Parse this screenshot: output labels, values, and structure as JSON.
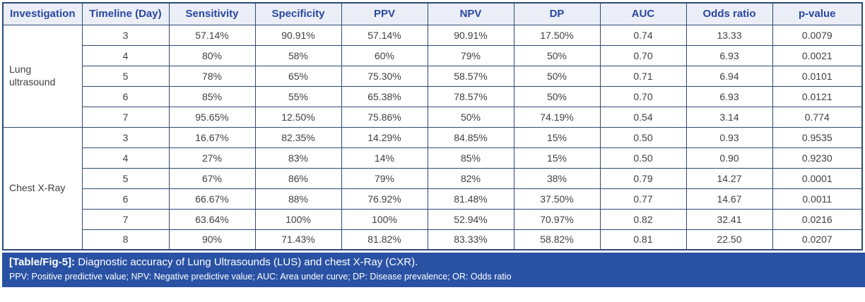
{
  "table": {
    "columns": [
      "Investigation",
      "Timeline (Day)",
      "Sensitivity",
      "Specificity",
      "PPV",
      "NPV",
      "DP",
      "AUC",
      "Odds ratio",
      "p-value"
    ],
    "groups": [
      {
        "investigation": "Lung ultrasound",
        "rows": [
          [
            "3",
            "57.14%",
            "90.91%",
            "57.14%",
            "90.91%",
            "17.50%",
            "0.74",
            "13.33",
            "0.0079"
          ],
          [
            "4",
            "80%",
            "58%",
            "60%",
            "79%",
            "50%",
            "0.70",
            "6.93",
            "0.0021"
          ],
          [
            "5",
            "78%",
            "65%",
            "75.30%",
            "58.57%",
            "50%",
            "0.71",
            "6.94",
            "0.0101"
          ],
          [
            "6",
            "85%",
            "55%",
            "65.38%",
            "78.57%",
            "50%",
            "0.70",
            "6.93",
            "0.0121"
          ],
          [
            "7",
            "95.65%",
            "12.50%",
            "75.86%",
            "50%",
            "74.19%",
            "0.54",
            "3.14",
            "0.774"
          ]
        ]
      },
      {
        "investigation": "Chest X-Ray",
        "rows": [
          [
            "3",
            "16.67%",
            "82.35%",
            "14.29%",
            "84.85%",
            "15%",
            "0.50",
            "0.93",
            "0.9535"
          ],
          [
            "4",
            "27%",
            "83%",
            "14%",
            "85%",
            "15%",
            "0.50",
            "0.90",
            "0.9230"
          ],
          [
            "5",
            "67%",
            "86%",
            "79%",
            "82%",
            "38%",
            "0.79",
            "14.27",
            "0.0001"
          ],
          [
            "6",
            "66.67%",
            "88%",
            "76.92%",
            "81.48%",
            "37.50%",
            "0.77",
            "14.67",
            "0.0011"
          ],
          [
            "7",
            "63.64%",
            "100%",
            "100%",
            "52.94%",
            "70.97%",
            "0.82",
            "32.41",
            "0.0216"
          ],
          [
            "8",
            "90%",
            "71.43%",
            "81.82%",
            "83.33%",
            "58.82%",
            "0.81",
            "22.50",
            "0.0207"
          ]
        ]
      }
    ]
  },
  "caption": {
    "label": "[Table/Fig-5]:",
    "title": " Diagnostic accuracy of Lung Ultrasounds (LUS) and chest X-Ray (CXR).",
    "abbreviations": "PPV: Positive predictive value; NPV: Negative predictive value; AUC: Area under curve; DP: Disease prevalence; OR: Odds ratio"
  },
  "colors": {
    "border": "#2d4a73",
    "header_bg": "#ebeef7",
    "header_text": "#2847a0",
    "body_text": "#404040",
    "caption_bg": "#2a52a4",
    "caption_text": "#ffffff"
  },
  "chart_data": {
    "type": "table",
    "title": "[Table/Fig-5]: Diagnostic accuracy of Lung Ultrasounds (LUS) and chest X-Ray (CXR).",
    "columns": [
      "Investigation",
      "Timeline (Day)",
      "Sensitivity",
      "Specificity",
      "PPV",
      "NPV",
      "DP",
      "AUC",
      "Odds ratio",
      "p-value"
    ],
    "rows": [
      [
        "Lung ultrasound",
        "3",
        "57.14%",
        "90.91%",
        "57.14%",
        "90.91%",
        "17.50%",
        "0.74",
        "13.33",
        "0.0079"
      ],
      [
        "Lung ultrasound",
        "4",
        "80%",
        "58%",
        "60%",
        "79%",
        "50%",
        "0.70",
        "6.93",
        "0.0021"
      ],
      [
        "Lung ultrasound",
        "5",
        "78%",
        "65%",
        "75.30%",
        "58.57%",
        "50%",
        "0.71",
        "6.94",
        "0.0101"
      ],
      [
        "Lung ultrasound",
        "6",
        "85%",
        "55%",
        "65.38%",
        "78.57%",
        "50%",
        "0.70",
        "6.93",
        "0.0121"
      ],
      [
        "Lung ultrasound",
        "7",
        "95.65%",
        "12.50%",
        "75.86%",
        "50%",
        "74.19%",
        "0.54",
        "3.14",
        "0.774"
      ],
      [
        "Chest X-Ray",
        "3",
        "16.67%",
        "82.35%",
        "14.29%",
        "84.85%",
        "15%",
        "0.50",
        "0.93",
        "0.9535"
      ],
      [
        "Chest X-Ray",
        "4",
        "27%",
        "83%",
        "14%",
        "85%",
        "15%",
        "0.50",
        "0.90",
        "0.9230"
      ],
      [
        "Chest X-Ray",
        "5",
        "67%",
        "86%",
        "79%",
        "82%",
        "38%",
        "0.79",
        "14.27",
        "0.0001"
      ],
      [
        "Chest X-Ray",
        "6",
        "66.67%",
        "88%",
        "76.92%",
        "81.48%",
        "37.50%",
        "0.77",
        "14.67",
        "0.0011"
      ],
      [
        "Chest X-Ray",
        "7",
        "63.64%",
        "100%",
        "100%",
        "52.94%",
        "70.97%",
        "0.82",
        "32.41",
        "0.0216"
      ],
      [
        "Chest X-Ray",
        "8",
        "90%",
        "71.43%",
        "81.82%",
        "83.33%",
        "58.82%",
        "0.81",
        "22.50",
        "0.0207"
      ]
    ]
  }
}
